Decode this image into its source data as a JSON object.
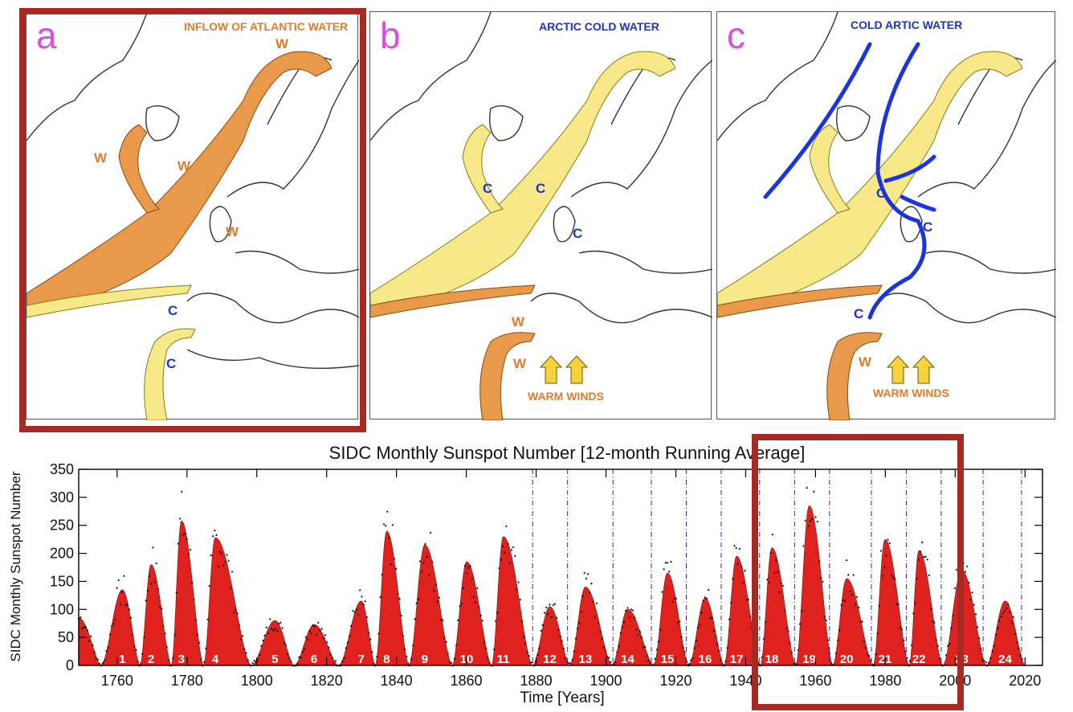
{
  "maps": {
    "panels": [
      {
        "letter": "a",
        "title": "INFLOW OF ATLANTIC WATER",
        "title_color": "#e07b2a",
        "labels": [
          "W",
          "W",
          "W",
          "W",
          "C",
          "C"
        ]
      },
      {
        "letter": "b",
        "title": "ARCTIC COLD WATER",
        "title_color": "#1a35c8",
        "labels": [
          "C",
          "C",
          "C",
          "W",
          "W",
          "WARM WINDS"
        ]
      },
      {
        "letter": "c",
        "title": "COLD ARTIC WATER",
        "title_color": "#1a35c8",
        "labels": [
          "C",
          "C",
          "C",
          "W",
          "WARM WINDS"
        ]
      }
    ],
    "colors": {
      "warm": "#e89a4a",
      "cool": "#f7e98a",
      "cold_arrow": "#1a35e0",
      "letter": "#d94fd9",
      "highlight": "#a52a24"
    }
  },
  "chart_data": {
    "type": "area",
    "title": "SIDC Monthly Sunspot Number [12-month Running Average]",
    "xlabel": "Time [Years]",
    "ylabel": "SIDC Monthly Sunspot Number",
    "xlim": [
      1749,
      2025
    ],
    "ylim": [
      0,
      350
    ],
    "xticks": [
      1760,
      1780,
      1800,
      1820,
      1840,
      1860,
      1880,
      1900,
      1920,
      1940,
      1960,
      1980,
      2000,
      2020
    ],
    "yticks": [
      0,
      50,
      100,
      150,
      200,
      250,
      300,
      350
    ],
    "fill_color": "#e0221f",
    "grid": false,
    "cycle_boundaries": [
      1879,
      1889,
      1902,
      1913,
      1923,
      1933,
      1944,
      1954,
      1964,
      1976,
      1986,
      1996,
      2008,
      2019
    ],
    "cycles": [
      {
        "label": "1",
        "start": 1755.2,
        "peak_year": 1761.5,
        "peak": 135
      },
      {
        "label": "2",
        "start": 1766.5,
        "peak_year": 1769.7,
        "peak": 180
      },
      {
        "label": "3",
        "start": 1775.5,
        "peak_year": 1778.4,
        "peak": 258
      },
      {
        "label": "4",
        "start": 1784.7,
        "peak_year": 1788.1,
        "peak": 228
      },
      {
        "label": "5",
        "start": 1798.3,
        "peak_year": 1805.2,
        "peak": 80
      },
      {
        "label": "6",
        "start": 1810.6,
        "peak_year": 1816.4,
        "peak": 73
      },
      {
        "label": "7",
        "start": 1823.3,
        "peak_year": 1829.9,
        "peak": 115
      },
      {
        "label": "8",
        "start": 1833.9,
        "peak_year": 1837.2,
        "peak": 240
      },
      {
        "label": "9",
        "start": 1843.5,
        "peak_year": 1848.1,
        "peak": 215
      },
      {
        "label": "10",
        "start": 1855.9,
        "peak_year": 1860.1,
        "peak": 185
      },
      {
        "label": "11",
        "start": 1867.2,
        "peak_year": 1870.6,
        "peak": 230
      },
      {
        "label": "12",
        "start": 1878.9,
        "peak_year": 1883.9,
        "peak": 105
      },
      {
        "label": "13",
        "start": 1889.6,
        "peak_year": 1894.1,
        "peak": 140
      },
      {
        "label": "14",
        "start": 1901.7,
        "peak_year": 1906.2,
        "peak": 100
      },
      {
        "label": "15",
        "start": 1913.6,
        "peak_year": 1917.6,
        "peak": 165
      },
      {
        "label": "16",
        "start": 1923.6,
        "peak_year": 1928.4,
        "peak": 120
      },
      {
        "label": "17",
        "start": 1933.8,
        "peak_year": 1937.4,
        "peak": 195
      },
      {
        "label": "18",
        "start": 1944.2,
        "peak_year": 1947.5,
        "peak": 210
      },
      {
        "label": "19",
        "start": 1954.3,
        "peak_year": 1958.2,
        "peak": 285
      },
      {
        "label": "20",
        "start": 1964.9,
        "peak_year": 1968.9,
        "peak": 155
      },
      {
        "label": "21",
        "start": 1976.5,
        "peak_year": 1979.9,
        "peak": 225
      },
      {
        "label": "22",
        "start": 1986.8,
        "peak_year": 1989.6,
        "peak": 205
      },
      {
        "label": "23",
        "start": 1996.4,
        "peak_year": 2001.9,
        "peak": 170
      },
      {
        "label": "24",
        "start": 2008.9,
        "peak_year": 2014.3,
        "peak": 115
      }
    ],
    "end_year": 2020.0
  }
}
